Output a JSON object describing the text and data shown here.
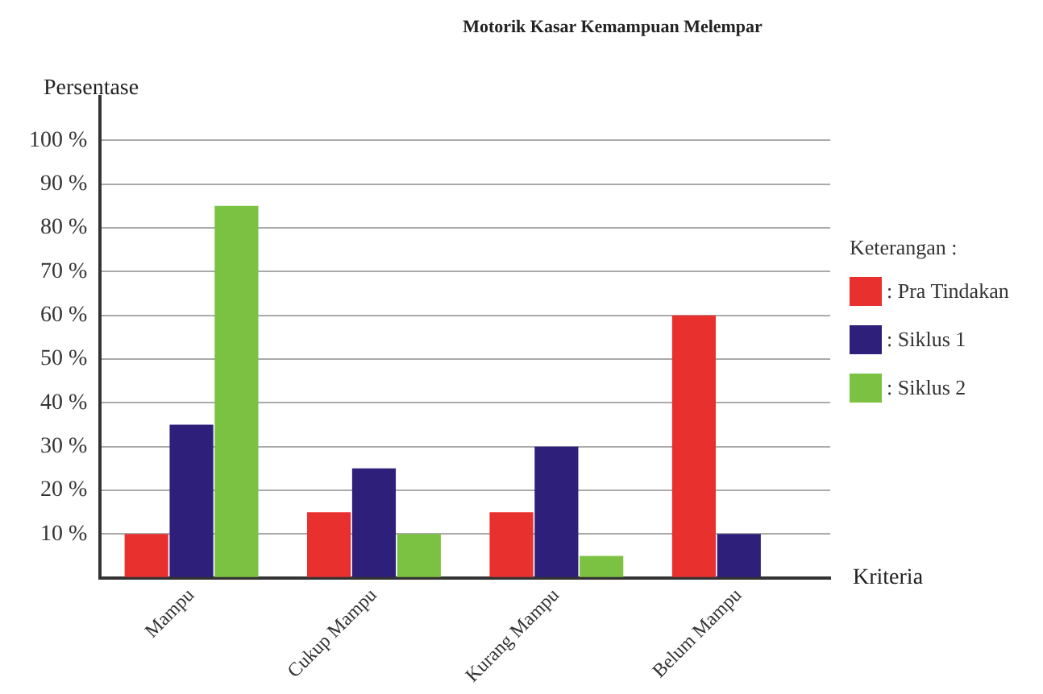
{
  "chart_data": {
    "type": "bar",
    "title": "Motorik Kasar Kemampuan Melempar",
    "ylabel": "Persentase",
    "xlabel": "Kriteria",
    "legend_title": "Keterangan :",
    "categories": [
      "Mampu",
      "Cukup Mampu",
      "Kurang Mampu",
      "Belum Mampu"
    ],
    "series": [
      {
        "name": ": Pra Tindakan",
        "color": "#e8302f",
        "values": [
          10,
          15,
          15,
          60
        ]
      },
      {
        "name": ": Siklus 1",
        "color": "#2e1f7a",
        "values": [
          35,
          25,
          30,
          10
        ]
      },
      {
        "name": ": Siklus 2",
        "color": "#7cc242",
        "values": [
          85,
          10,
          5,
          0
        ]
      }
    ],
    "ylim": [
      0,
      110
    ],
    "yticks": [
      {
        "value": 0,
        "label": null
      },
      {
        "value": 10,
        "label": "10 %"
      },
      {
        "value": 20,
        "label": "20 %"
      },
      {
        "value": 30,
        "label": "30 %"
      },
      {
        "value": 40,
        "label": "40 %"
      },
      {
        "value": 50,
        "label": "50 %"
      },
      {
        "value": 60,
        "label": "60 %"
      },
      {
        "value": 70,
        "label": "70 %"
      },
      {
        "value": 80,
        "label": "80 %"
      },
      {
        "value": 90,
        "label": "90 %"
      },
      {
        "value": 100,
        "label": "100 %"
      }
    ],
    "grid": "y",
    "legend": "right"
  }
}
